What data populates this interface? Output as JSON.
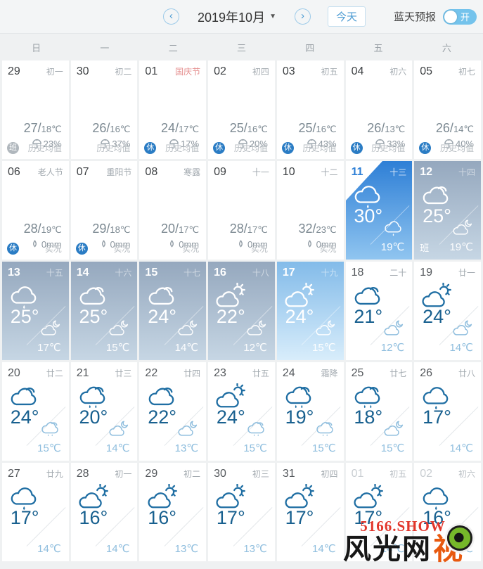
{
  "topbar": {
    "prev_arrow": "‹",
    "next_arrow": "›",
    "title": "2019年10月",
    "caret": "▼",
    "today_label": "今天",
    "bluesky_label": "蓝天预报",
    "toggle_state_label": "开"
  },
  "weekdays": [
    "日",
    "一",
    "二",
    "三",
    "四",
    "五",
    "六"
  ],
  "colors": {
    "accent_blue": "#4a9ad2",
    "today_gradient_top": "#2e7fd6",
    "today_gradient_bottom": "#90c5f0",
    "muted_gradient_top": "#95a8be",
    "muted_gradient_bottom": "#c6d6e4",
    "bright_gradient_top": "#83bbe9",
    "bright_gradient_bottom": "#d8edfb",
    "rest_badge": "#2a7cc4",
    "festival_red": "#e59090",
    "day_temp_blue": "#18608f",
    "night_temp_blue": "#8fbede"
  },
  "cells": [
    {
      "date": "29",
      "lunar": "初一",
      "kind": "history",
      "hi": "27/",
      "lo": "18℃",
      "stat_icon": "umbrella",
      "stat": "23%",
      "badge": "班",
      "badge_style": "work",
      "label": "历史均值"
    },
    {
      "date": "30",
      "lunar": "初二",
      "kind": "history",
      "hi": "26/",
      "lo": "16℃",
      "stat_icon": "umbrella",
      "stat": "37%",
      "label": "历史均值"
    },
    {
      "date": "01",
      "lunar": "国庆节",
      "festival": true,
      "kind": "history",
      "hi": "24/",
      "lo": "17℃",
      "stat_icon": "umbrella",
      "stat": "17%",
      "badge": "休",
      "badge_style": "rest",
      "label": "历史均值"
    },
    {
      "date": "02",
      "lunar": "初四",
      "kind": "history",
      "hi": "25/",
      "lo": "16℃",
      "stat_icon": "umbrella",
      "stat": "20%",
      "badge": "休",
      "badge_style": "rest",
      "label": "历史均值"
    },
    {
      "date": "03",
      "lunar": "初五",
      "kind": "history",
      "hi": "25/",
      "lo": "16℃",
      "stat_icon": "umbrella",
      "stat": "43%",
      "badge": "休",
      "badge_style": "rest",
      "label": "历史均值"
    },
    {
      "date": "04",
      "lunar": "初六",
      "kind": "history",
      "hi": "26/",
      "lo": "13℃",
      "stat_icon": "umbrella",
      "stat": "33%",
      "badge": "休",
      "badge_style": "rest",
      "label": "历史均值"
    },
    {
      "date": "05",
      "lunar": "初七",
      "kind": "history",
      "hi": "26/",
      "lo": "14℃",
      "stat_icon": "umbrella",
      "stat": "40%",
      "badge": "休",
      "badge_style": "rest",
      "label": "历史均值"
    },
    {
      "date": "06",
      "lunar": "老人节",
      "kind": "history",
      "hi": "28/",
      "lo": "19℃",
      "stat_icon": "drop",
      "stat": "0mm",
      "badge": "休",
      "badge_style": "rest",
      "label": "实况"
    },
    {
      "date": "07",
      "lunar": "重阳节",
      "kind": "history",
      "hi": "29/",
      "lo": "18℃",
      "stat_icon": "drop",
      "stat": "0mm",
      "badge": "休",
      "badge_style": "rest",
      "label": "实况"
    },
    {
      "date": "08",
      "lunar": "寒露",
      "kind": "history",
      "hi": "20/",
      "lo": "17℃",
      "stat_icon": "drop",
      "stat": "0mm",
      "label": "实况"
    },
    {
      "date": "09",
      "lunar": "十一",
      "kind": "history",
      "hi": "28/",
      "lo": "17℃",
      "stat_icon": "drop",
      "stat": "0mm",
      "label": "实况"
    },
    {
      "date": "10",
      "lunar": "十二",
      "kind": "history",
      "hi": "32/",
      "lo": "23℃",
      "stat_icon": "drop",
      "stat": "0mm",
      "label": "实况"
    },
    {
      "date": "11",
      "lunar": "十三",
      "kind": "forecast",
      "variant": "today",
      "corner": true,
      "day_icon": "rain",
      "day_temp": "30°",
      "night_icon": "rain",
      "night_temp": "19℃"
    },
    {
      "date": "12",
      "lunar": "十四",
      "kind": "forecast",
      "variant": "muted",
      "work_mark": "班",
      "day_icon": "cloud",
      "day_temp": "25°",
      "night_icon": "moon-cloud",
      "night_temp": "19℃"
    },
    {
      "date": "13",
      "lunar": "十五",
      "kind": "forecast",
      "variant": "muted",
      "day_icon": "rain",
      "day_temp": "25°",
      "night_icon": "moon-cloud",
      "night_temp": "17℃"
    },
    {
      "date": "14",
      "lunar": "十六",
      "kind": "forecast",
      "variant": "muted",
      "day_icon": "cloud",
      "day_temp": "25°",
      "night_icon": "moon-cloud",
      "night_temp": "15℃"
    },
    {
      "date": "15",
      "lunar": "十七",
      "kind": "forecast",
      "variant": "muted",
      "day_icon": "cloud",
      "day_temp": "24°",
      "night_icon": "moon-cloud",
      "night_temp": "14℃"
    },
    {
      "date": "16",
      "lunar": "十八",
      "kind": "forecast",
      "variant": "muted",
      "day_icon": "sun-cloud",
      "day_temp": "22°",
      "night_icon": "moon-cloud",
      "night_temp": "12℃"
    },
    {
      "date": "17",
      "lunar": "十九",
      "kind": "forecast",
      "variant": "bright",
      "day_icon": "sun-cloud",
      "day_temp": "24°",
      "night_icon": "moon-cloud",
      "night_temp": "15℃"
    },
    {
      "date": "18",
      "lunar": "二十",
      "kind": "forecast",
      "variant": "white",
      "day_icon": "cloud",
      "day_temp": "21°",
      "night_icon": "moon-cloud",
      "night_temp": "12℃"
    },
    {
      "date": "19",
      "lunar": "廿一",
      "kind": "forecast",
      "variant": "white",
      "day_icon": "sun-cloud",
      "day_temp": "24°",
      "night_icon": "moon-cloud",
      "night_temp": "14℃"
    },
    {
      "date": "20",
      "lunar": "廿二",
      "kind": "forecast",
      "variant": "white",
      "day_icon": "cloud",
      "day_temp": "24°",
      "night_icon": "drizzle",
      "night_temp": "15℃"
    },
    {
      "date": "21",
      "lunar": "廿三",
      "kind": "forecast",
      "variant": "white",
      "day_icon": "drizzle",
      "day_temp": "20°",
      "night_icon": "moon-cloud",
      "night_temp": "14℃"
    },
    {
      "date": "22",
      "lunar": "廿四",
      "kind": "forecast",
      "variant": "white",
      "day_icon": "cloud",
      "day_temp": "22°",
      "night_icon": "moon-cloud",
      "night_temp": "13℃"
    },
    {
      "date": "23",
      "lunar": "廿五",
      "kind": "forecast",
      "variant": "white",
      "day_icon": "sun-cloud",
      "day_temp": "24°",
      "night_icon": "drizzle",
      "night_temp": "15℃"
    },
    {
      "date": "24",
      "lunar": "霜降",
      "kind": "forecast",
      "variant": "white",
      "day_icon": "drizzle",
      "day_temp": "19°",
      "night_icon": "drizzle",
      "night_temp": "15℃"
    },
    {
      "date": "25",
      "lunar": "廿七",
      "kind": "forecast",
      "variant": "white",
      "day_icon": "drizzle",
      "day_temp": "18°",
      "night_icon": "moon-cloud",
      "night_temp": "15℃"
    },
    {
      "date": "26",
      "lunar": "廿八",
      "kind": "forecast",
      "variant": "white",
      "day_icon": "rain",
      "day_temp": "17°",
      "night_temp": "14℃"
    },
    {
      "date": "27",
      "lunar": "廿九",
      "kind": "forecast",
      "variant": "white",
      "day_icon": "rain",
      "day_temp": "17°",
      "night_temp": "14℃"
    },
    {
      "date": "28",
      "lunar": "初一",
      "kind": "forecast",
      "variant": "white",
      "day_icon": "sun-cloud",
      "day_temp": "16°",
      "night_temp": "14℃"
    },
    {
      "date": "29",
      "lunar": "初二",
      "kind": "forecast",
      "variant": "white",
      "day_icon": "sun-cloud",
      "day_temp": "16°",
      "night_temp": "13℃"
    },
    {
      "date": "30",
      "lunar": "初三",
      "kind": "forecast",
      "variant": "white",
      "day_icon": "sun-cloud",
      "day_temp": "17°",
      "night_temp": "13℃"
    },
    {
      "date": "31",
      "lunar": "初四",
      "kind": "forecast",
      "variant": "white",
      "day_icon": "sun-cloud",
      "day_temp": "17°",
      "night_temp": "14℃"
    },
    {
      "date": "01",
      "lunar": "初五",
      "dim": true,
      "kind": "forecast",
      "variant": "white",
      "day_icon": "sun-cloud",
      "day_temp": "17°",
      "night_temp": "14℃"
    },
    {
      "date": "02",
      "lunar": "初六",
      "dim": true,
      "kind": "forecast",
      "variant": "white",
      "day_icon": "rain",
      "day_temp": "16°",
      "night_temp": "14℃"
    }
  ],
  "watermark": {
    "line1": "5166.SHOW",
    "line2": "风光网",
    "char": "视"
  }
}
